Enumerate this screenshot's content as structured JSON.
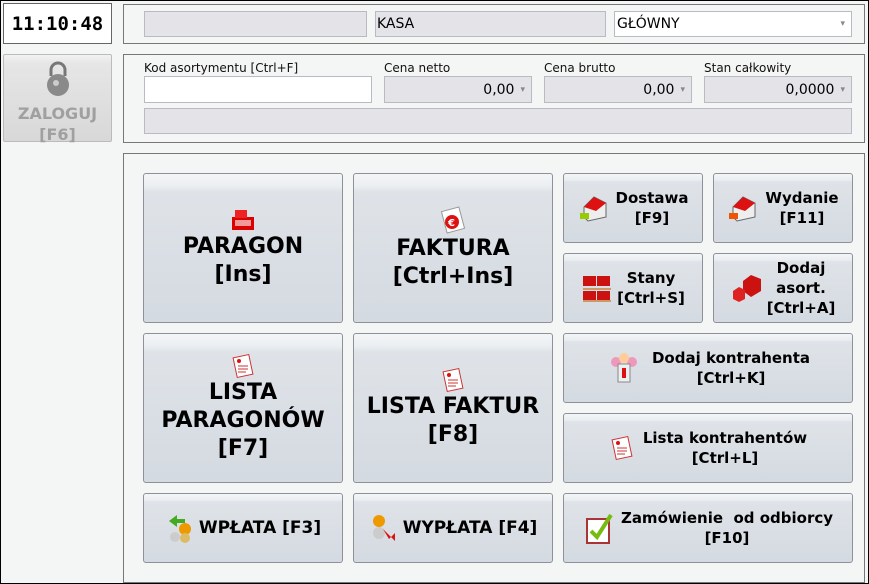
{
  "clock": "11:10:48",
  "login": {
    "label": "ZALOGUJ",
    "shortcut": "[F6]",
    "icon": "padlock-icon"
  },
  "top": {
    "field1": "",
    "station": "KASA",
    "warehouse": "GŁÓWNY"
  },
  "product": {
    "code_label": "Kod asortymentu [Ctrl+F]",
    "code_value": "",
    "net_label": "Cena netto",
    "net_value": "0,00",
    "gross_label": "Cena brutto",
    "gross_value": "0,00",
    "stock_label": "Stan całkowity",
    "stock_value": "0,0000",
    "name_value": ""
  },
  "buttons": {
    "paragon": {
      "line1": "PARAGON",
      "line2": "[Ins]"
    },
    "faktura": {
      "line1": "FAKTURA",
      "line2": "[Ctrl+Ins]"
    },
    "dostawa": {
      "line1": "Dostawa",
      "line2": "[F9]"
    },
    "wydanie": {
      "line1": "Wydanie",
      "line2": "[F11]"
    },
    "stany": {
      "line1": "Stany",
      "line2": "[Ctrl+S]"
    },
    "dodaj_asort": {
      "line1": "Dodaj",
      "line2": "asort.",
      "line3": "[Ctrl+A]"
    },
    "lista_paragonow": {
      "line1": "LISTA",
      "line2": "PARAGONÓW",
      "line3": "[F7]"
    },
    "lista_faktur": {
      "line1": "LISTA FAKTUR",
      "line2": "[F8]"
    },
    "dodaj_kontrahenta": {
      "line1": "Dodaj kontrahenta",
      "line2": "[Ctrl+K]"
    },
    "lista_kontrahentow": {
      "line1": "Lista kontrahentów",
      "line2": "[Ctrl+L]"
    },
    "wplata": {
      "label": "WPŁATA [F3]"
    },
    "wyplata": {
      "label": "WYPŁATA [F4]"
    },
    "zamowienie": {
      "line1": "Zamówienie  od odbiorcy",
      "line2": "[F10]"
    }
  },
  "dropdown_glyph": "▾"
}
